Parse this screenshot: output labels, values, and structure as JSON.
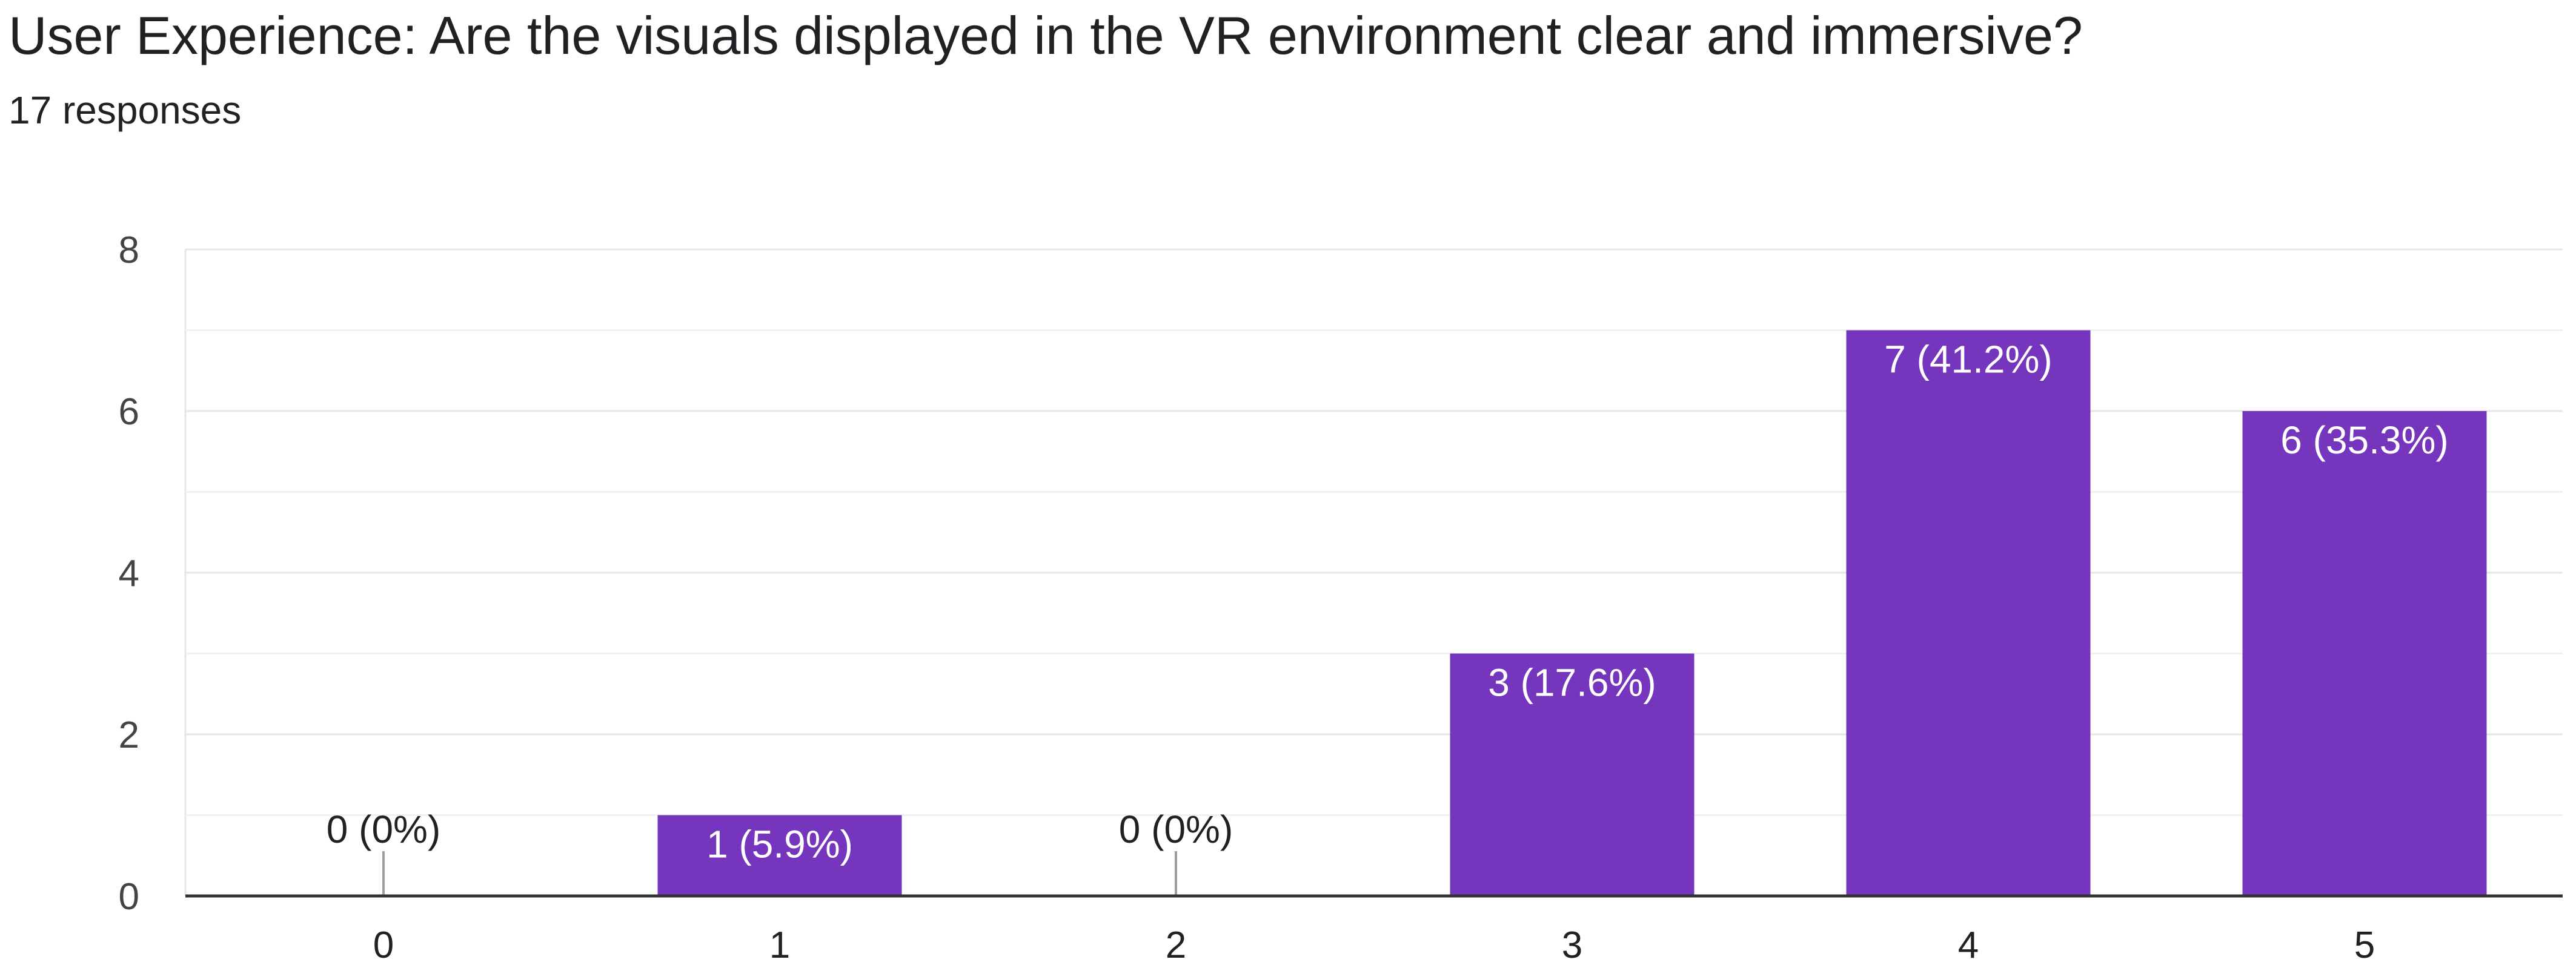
{
  "chart_data": {
    "type": "bar",
    "title": "User Experience: Are the visuals displayed in the VR environment clear and immersive?",
    "subtitle": "17 responses",
    "categories": [
      "0",
      "1",
      "2",
      "3",
      "4",
      "5"
    ],
    "values": [
      0,
      1,
      0,
      3,
      7,
      6
    ],
    "data_labels": [
      "0 (0%)",
      "1 (5.9%)",
      "0 (0%)",
      "3 (17.6%)",
      "7 (41.2%)",
      "6 (35.3%)"
    ],
    "ylim": [
      0,
      8
    ],
    "yticks": [
      0,
      2,
      4,
      6,
      8
    ],
    "ytick_labels": [
      "0",
      "2",
      "4",
      "6",
      "8"
    ],
    "grid": true,
    "xlabel": "",
    "ylabel": "",
    "bar_color": "#7536bd"
  }
}
